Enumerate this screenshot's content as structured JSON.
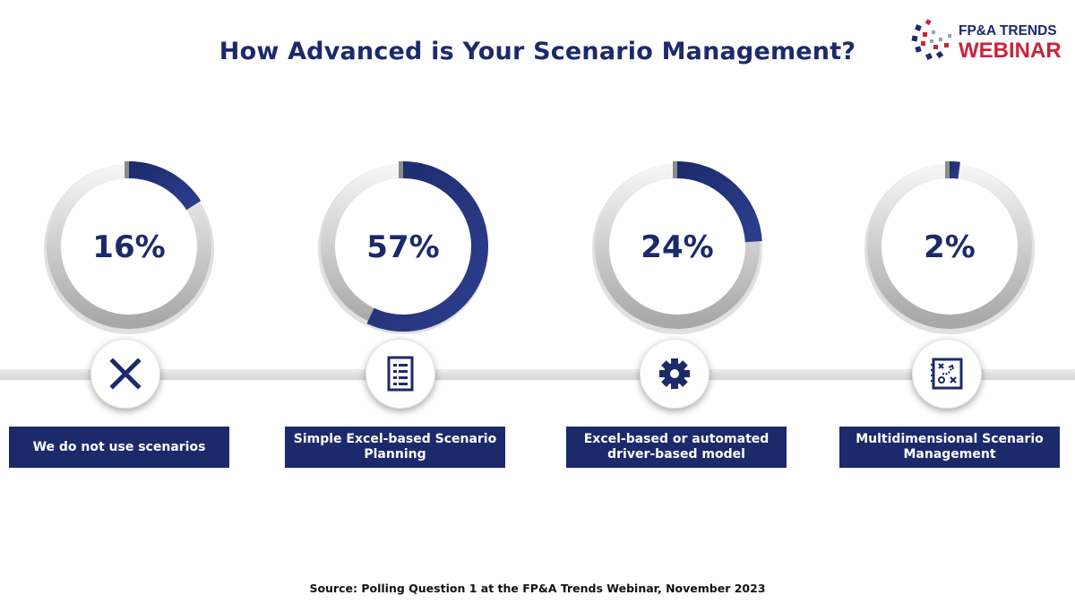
{
  "title": "How Advanced is Your Scenario Management?",
  "logo": {
    "line1": "FP&A TRENDS",
    "line2": "WEBINAR"
  },
  "source": "Source: Polling Question 1 at the FP&A Trends Webinar, November 2023",
  "colors": {
    "accent": "#1c2a6b",
    "track": "#dcdcdc",
    "logo_red": "#c8243c"
  },
  "chart_data": {
    "type": "donut",
    "categories": [
      "We do not use scenarios",
      "Simple Excel-based Scenario Planning",
      "Excel-based or automated driver-based model",
      "Multidimensional Scenario Management"
    ],
    "values": [
      16,
      57,
      24,
      2
    ],
    "value_labels": [
      "16%",
      "57%",
      "24%",
      "2%"
    ],
    "unit": "%",
    "icons": [
      "x-icon",
      "checklist-icon",
      "gear-icon",
      "strategy-board-icon"
    ]
  },
  "labels": [
    "We do not use scenarios",
    "Simple Excel-based Scenario Planning",
    "Excel-based or automated driver-based model",
    "Multidimensional Scenario Management"
  ]
}
